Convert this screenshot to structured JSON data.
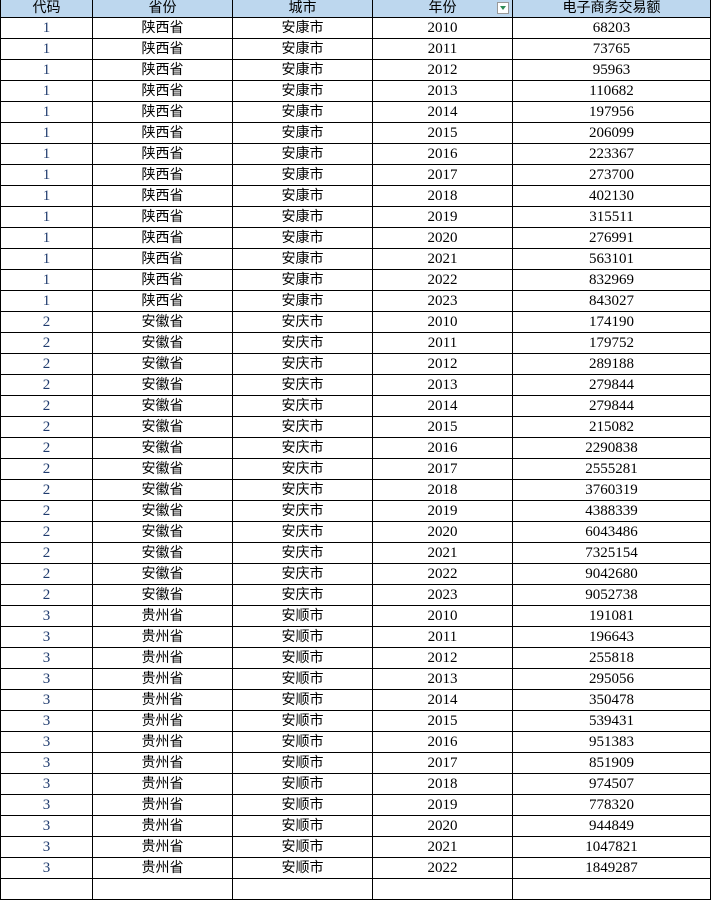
{
  "sheet": {
    "header_bg": "#bdd7ee",
    "columns": [
      "代码",
      "省份",
      "城市",
      "年份",
      "电子商务交易额"
    ],
    "filter_column": "年份",
    "rows": [
      [
        "1",
        "陕西省",
        "安康市",
        "2010",
        "68203"
      ],
      [
        "1",
        "陕西省",
        "安康市",
        "2011",
        "73765"
      ],
      [
        "1",
        "陕西省",
        "安康市",
        "2012",
        "95963"
      ],
      [
        "1",
        "陕西省",
        "安康市",
        "2013",
        "110682"
      ],
      [
        "1",
        "陕西省",
        "安康市",
        "2014",
        "197956"
      ],
      [
        "1",
        "陕西省",
        "安康市",
        "2015",
        "206099"
      ],
      [
        "1",
        "陕西省",
        "安康市",
        "2016",
        "223367"
      ],
      [
        "1",
        "陕西省",
        "安康市",
        "2017",
        "273700"
      ],
      [
        "1",
        "陕西省",
        "安康市",
        "2018",
        "402130"
      ],
      [
        "1",
        "陕西省",
        "安康市",
        "2019",
        "315511"
      ],
      [
        "1",
        "陕西省",
        "安康市",
        "2020",
        "276991"
      ],
      [
        "1",
        "陕西省",
        "安康市",
        "2021",
        "563101"
      ],
      [
        "1",
        "陕西省",
        "安康市",
        "2022",
        "832969"
      ],
      [
        "1",
        "陕西省",
        "安康市",
        "2023",
        "843027"
      ],
      [
        "2",
        "安徽省",
        "安庆市",
        "2010",
        "174190"
      ],
      [
        "2",
        "安徽省",
        "安庆市",
        "2011",
        "179752"
      ],
      [
        "2",
        "安徽省",
        "安庆市",
        "2012",
        "289188"
      ],
      [
        "2",
        "安徽省",
        "安庆市",
        "2013",
        "279844"
      ],
      [
        "2",
        "安徽省",
        "安庆市",
        "2014",
        "279844"
      ],
      [
        "2",
        "安徽省",
        "安庆市",
        "2015",
        "215082"
      ],
      [
        "2",
        "安徽省",
        "安庆市",
        "2016",
        "2290838"
      ],
      [
        "2",
        "安徽省",
        "安庆市",
        "2017",
        "2555281"
      ],
      [
        "2",
        "安徽省",
        "安庆市",
        "2018",
        "3760319"
      ],
      [
        "2",
        "安徽省",
        "安庆市",
        "2019",
        "4388339"
      ],
      [
        "2",
        "安徽省",
        "安庆市",
        "2020",
        "6043486"
      ],
      [
        "2",
        "安徽省",
        "安庆市",
        "2021",
        "7325154"
      ],
      [
        "2",
        "安徽省",
        "安庆市",
        "2022",
        "9042680"
      ],
      [
        "2",
        "安徽省",
        "安庆市",
        "2023",
        "9052738"
      ],
      [
        "3",
        "贵州省",
        "安顺市",
        "2010",
        "191081"
      ],
      [
        "3",
        "贵州省",
        "安顺市",
        "2011",
        "196643"
      ],
      [
        "3",
        "贵州省",
        "安顺市",
        "2012",
        "255818"
      ],
      [
        "3",
        "贵州省",
        "安顺市",
        "2013",
        "295056"
      ],
      [
        "3",
        "贵州省",
        "安顺市",
        "2014",
        "350478"
      ],
      [
        "3",
        "贵州省",
        "安顺市",
        "2015",
        "539431"
      ],
      [
        "3",
        "贵州省",
        "安顺市",
        "2016",
        "951383"
      ],
      [
        "3",
        "贵州省",
        "安顺市",
        "2017",
        "851909"
      ],
      [
        "3",
        "贵州省",
        "安顺市",
        "2018",
        "974507"
      ],
      [
        "3",
        "贵州省",
        "安顺市",
        "2019",
        "778320"
      ],
      [
        "3",
        "贵州省",
        "安顺市",
        "2020",
        "944849"
      ],
      [
        "3",
        "贵州省",
        "安顺市",
        "2021",
        "1047821"
      ],
      [
        "3",
        "贵州省",
        "安顺市",
        "2022",
        "1849287"
      ]
    ]
  }
}
